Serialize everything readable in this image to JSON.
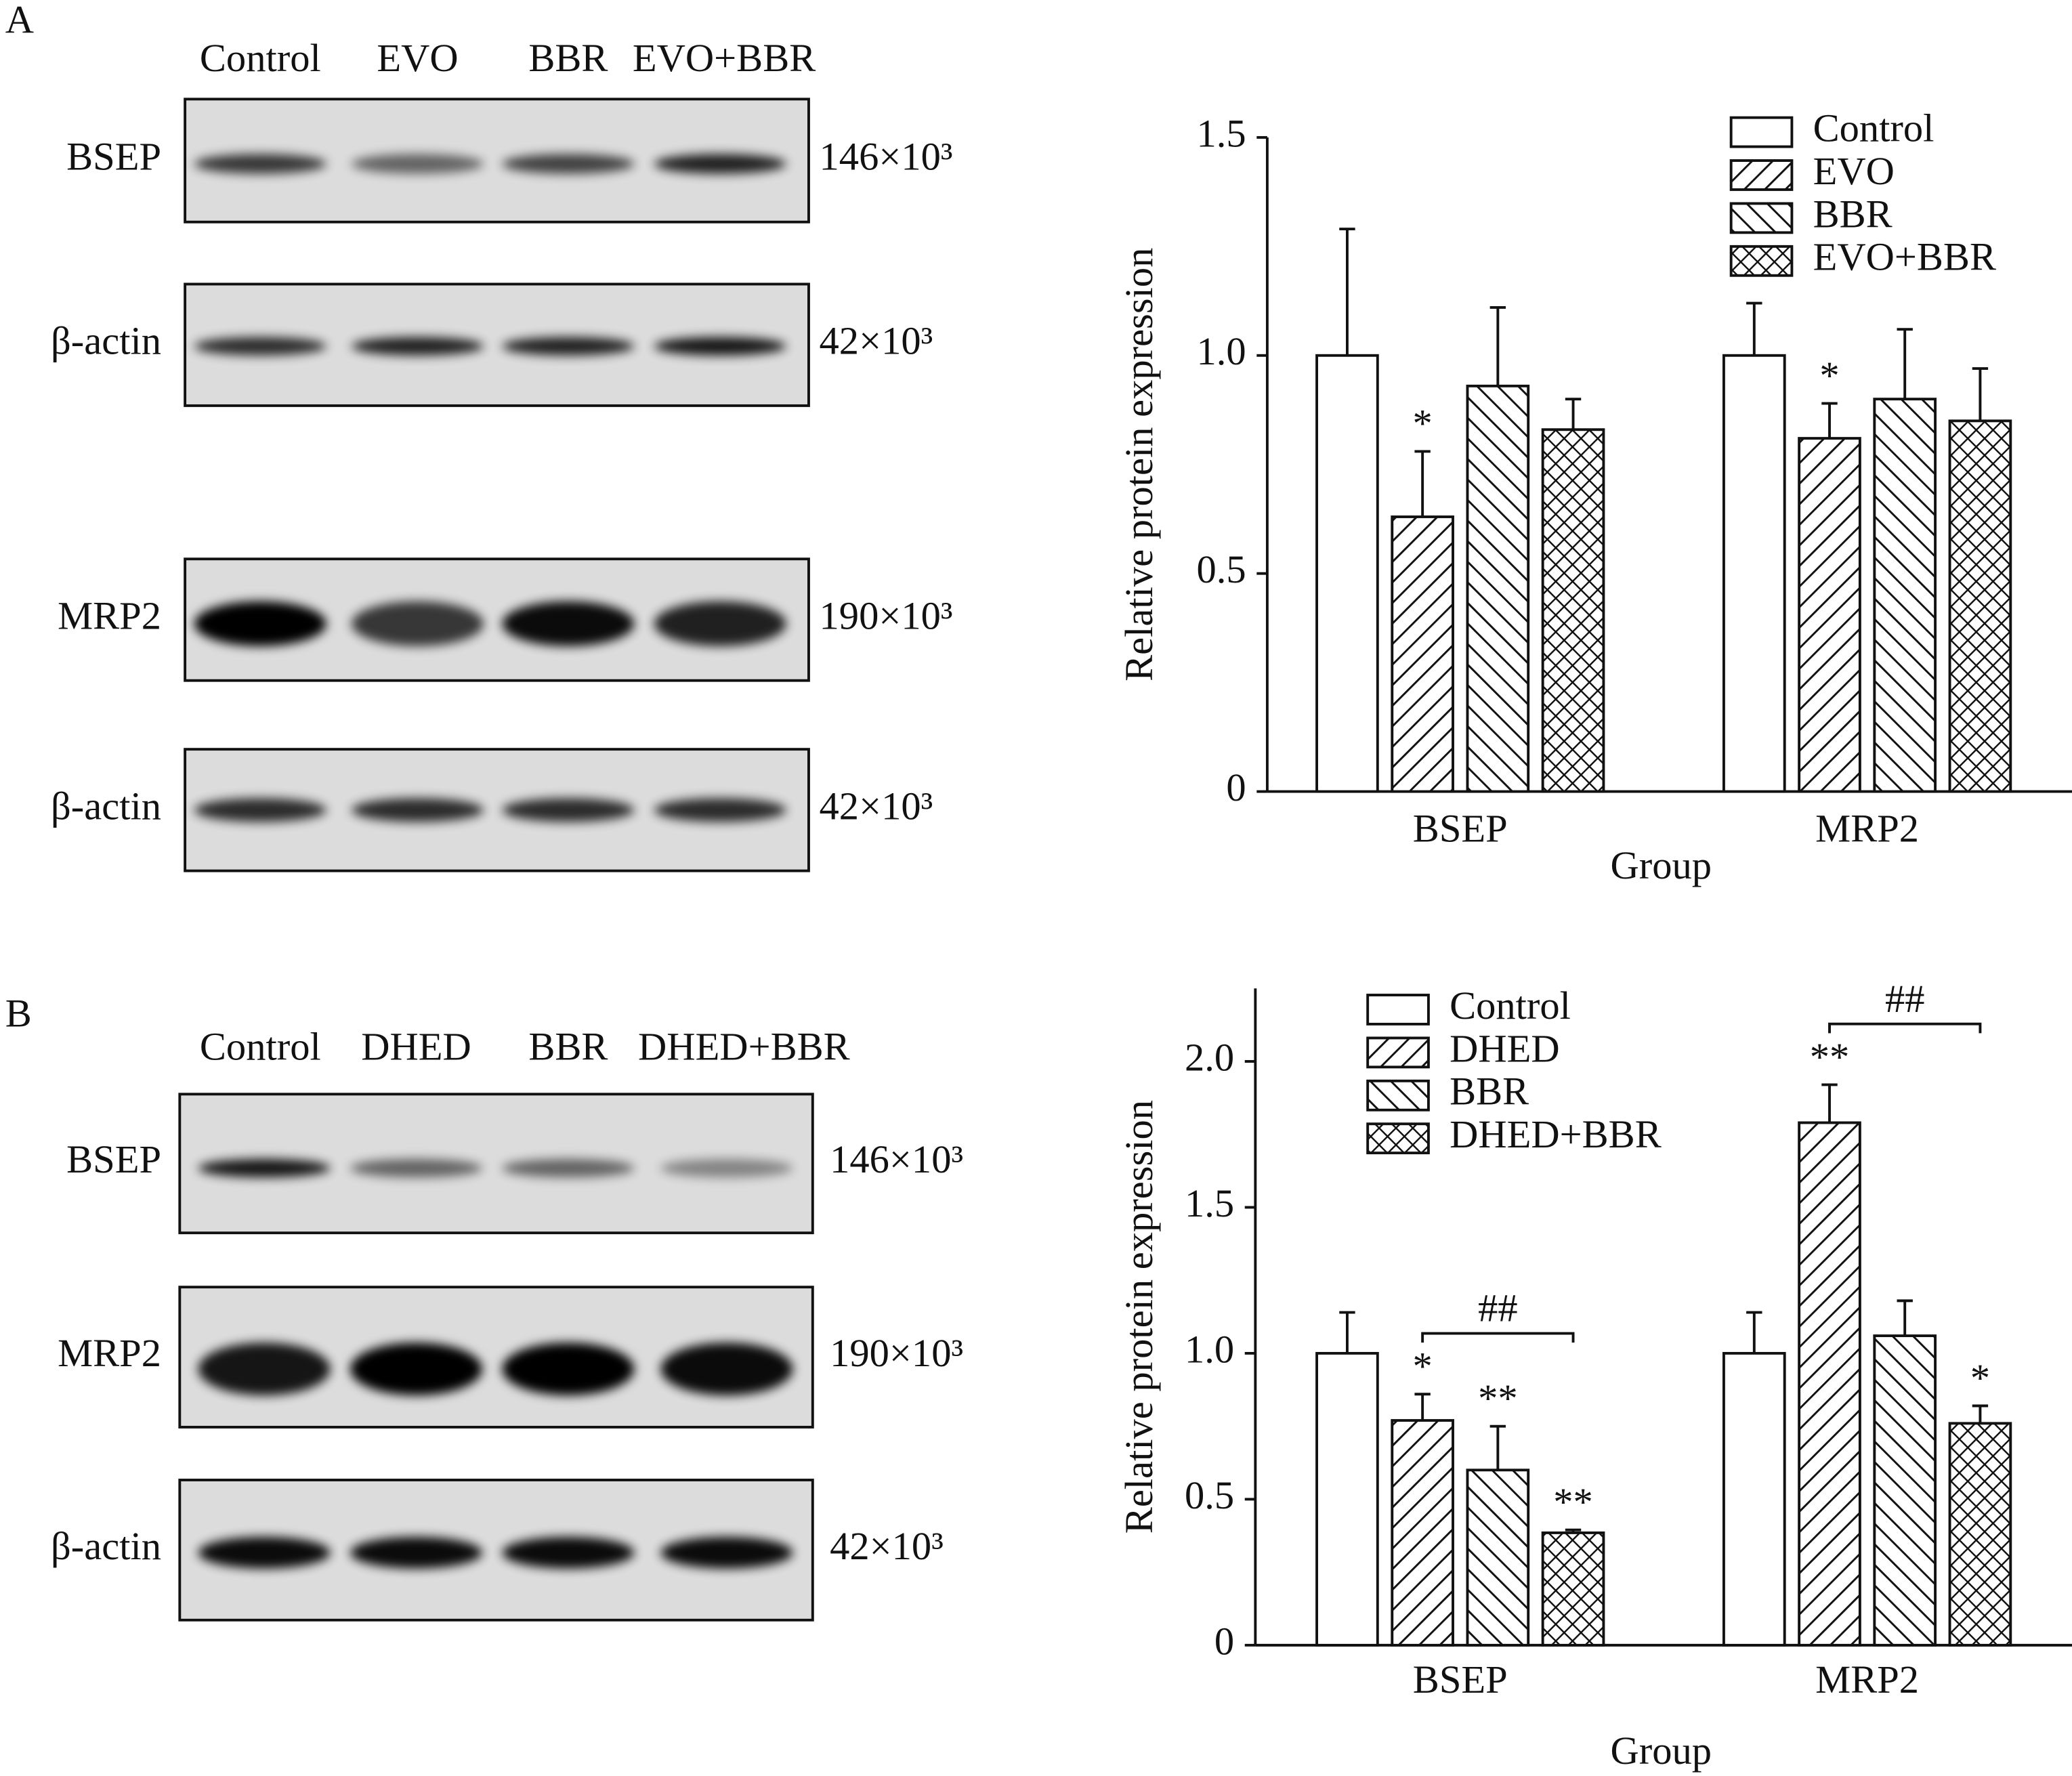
{
  "panels": [
    {
      "label": "A",
      "blot": {
        "lanes": [
          "Control",
          "EVO",
          "BBR",
          "EVO+BBR"
        ],
        "rows": [
          {
            "protein": "BSEP",
            "size": "146×10³"
          },
          {
            "protein": "β-actin",
            "size": "42×10³"
          },
          {
            "protein": "MRP2",
            "size": "190×10³"
          },
          {
            "protein": "β-actin",
            "size": "42×10³"
          }
        ]
      }
    },
    {
      "label": "B",
      "blot": {
        "lanes": [
          "Control",
          "DHED",
          "BBR",
          "DHED+BBR"
        ],
        "rows": [
          {
            "protein": "BSEP",
            "size": "146×10³"
          },
          {
            "protein": "MRP2",
            "size": "190×10³"
          },
          {
            "protein": "β-actin",
            "size": "42×10³"
          }
        ]
      }
    }
  ],
  "chart_data": [
    {
      "type": "bar",
      "y_label": "Relative protein expression",
      "x_label": "Group",
      "categories": [
        "BSEP",
        "MRP2"
      ],
      "series": [
        {
          "name": "Control",
          "color": "#111111",
          "pattern": "none",
          "values": [
            1.0,
            1.0
          ],
          "errors": [
            0.29,
            0.12
          ],
          "marks": [
            null,
            null
          ]
        },
        {
          "name": "EVO",
          "color": "#111111",
          "pattern": "hatch-right",
          "values": [
            0.63,
            0.81
          ],
          "errors": [
            0.15,
            0.08
          ],
          "marks": [
            "*",
            "*"
          ]
        },
        {
          "name": "BBR",
          "color": "#111111",
          "pattern": "hatch-left",
          "values": [
            0.93,
            0.9
          ],
          "errors": [
            0.18,
            0.16
          ],
          "marks": [
            null,
            null
          ]
        },
        {
          "name": "EVO+BBR",
          "color": "#111111",
          "pattern": "crosshatch",
          "values": [
            0.83,
            0.85
          ],
          "errors": [
            0.07,
            0.12
          ],
          "marks": [
            null,
            null
          ]
        }
      ],
      "ylim": [
        0,
        1.5
      ],
      "yticks": [
        0,
        0.5,
        {
          "value": 1,
          "label": "1.0"
        },
        1.5
      ],
      "legend": "upper right",
      "brackets": []
    },
    {
      "type": "bar",
      "y_label": "Relative protein expression",
      "x_label": "Group",
      "categories": [
        "BSEP",
        "MRP2"
      ],
      "series": [
        {
          "name": "Control",
          "color": "#111111",
          "pattern": "none",
          "values": [
            1.0,
            1.0
          ],
          "errors": [
            0.14,
            0.14
          ],
          "marks": [
            null,
            null
          ]
        },
        {
          "name": "DHED",
          "color": "#111111",
          "pattern": "hatch-right",
          "values": [
            0.77,
            1.79
          ],
          "errors": [
            0.09,
            0.13
          ],
          "marks": [
            "*",
            "**"
          ]
        },
        {
          "name": "BBR",
          "color": "#111111",
          "pattern": "hatch-left",
          "values": [
            0.6,
            1.06
          ],
          "errors": [
            0.15,
            0.12
          ],
          "marks": [
            "**",
            null
          ]
        },
        {
          "name": "DHED+BBR",
          "color": "#111111",
          "pattern": "crosshatch",
          "values": [
            0.385,
            0.76
          ],
          "errors": [
            0.01,
            0.06
          ],
          "marks": [
            "**",
            "*"
          ]
        }
      ],
      "ylim": [
        0,
        2.25
      ],
      "yticks": [
        0,
        0.5,
        {
          "value": 1,
          "label": "1.0"
        },
        1.5,
        {
          "value": 2,
          "label": "2.0"
        }
      ],
      "legend": "upper left",
      "brackets": [
        {
          "label": "##",
          "category": "BSEP",
          "from": "DHED",
          "to": "DHED+BBR"
        },
        {
          "label": "##",
          "category": "MRP2",
          "from": "DHED",
          "to": "DHED+BBR"
        }
      ]
    }
  ]
}
